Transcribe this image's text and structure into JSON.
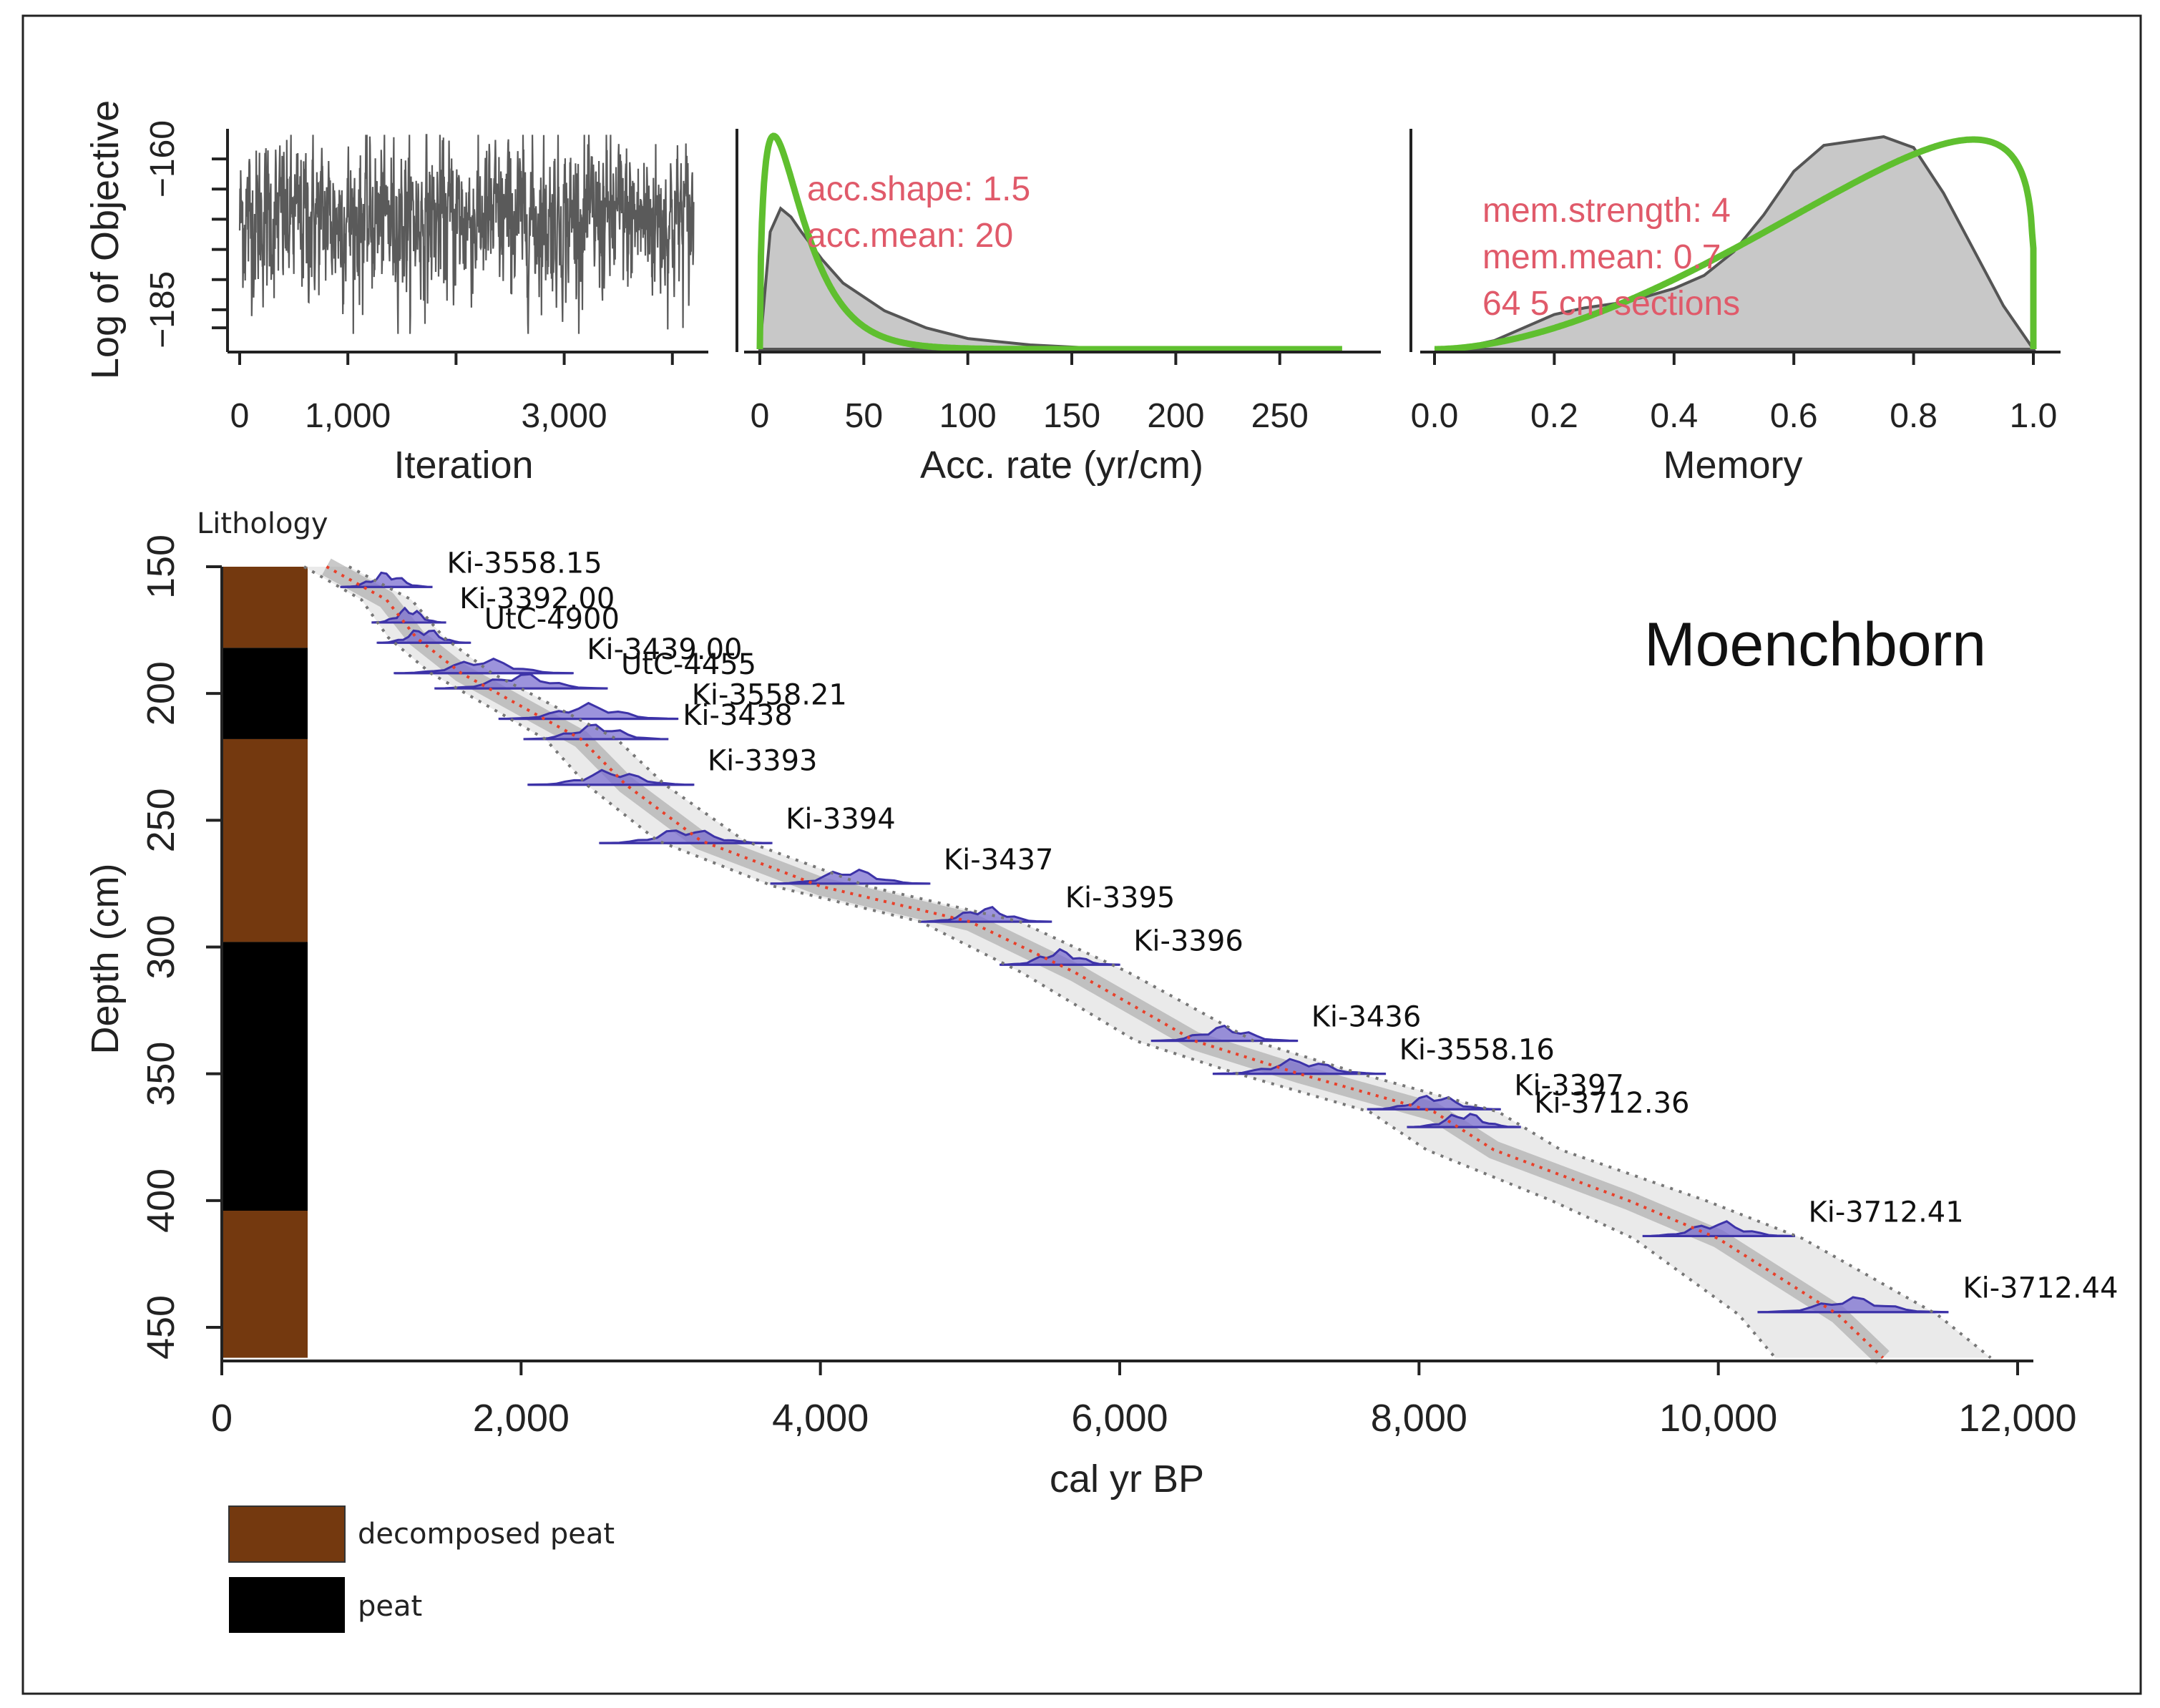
{
  "chart_data": [
    {
      "type": "line",
      "panel": "iterations",
      "ylabel": "Log of Objective",
      "xlabel": "Iteration",
      "xlim": [
        0,
        4200
      ],
      "ylim": [
        -190,
        -155
      ],
      "xticks": [
        0,
        1000,
        2000,
        3000,
        4000
      ],
      "xtick_labels": [
        "0",
        "1,000",
        "",
        "3,000",
        ""
      ],
      "yticks": [
        -160,
        -165,
        -170,
        -175,
        -180,
        -185,
        -188
      ],
      "ytick_labels": [
        "−160",
        "",
        "",
        "",
        "",
        "−185",
        ""
      ],
      "series": [
        {
          "n_points": 4200,
          "mean": -170,
          "spread": 6,
          "color": "#5a5a5a"
        }
      ]
    },
    {
      "type": "area",
      "panel": "accumulation",
      "xlabel": "Acc. rate (yr/cm)",
      "xlim": [
        0,
        290
      ],
      "xticks": [
        0,
        50,
        100,
        150,
        200,
        250
      ],
      "xtick_labels": [
        "0",
        "50",
        "100",
        "150",
        "200",
        "250"
      ],
      "annotations": [
        "acc.shape:  1.5",
        "acc.mean:  20"
      ],
      "prior": {
        "shape": 1.5,
        "mean": 20,
        "color": "#5fbf2f"
      },
      "posterior": {
        "x": [
          0,
          5,
          10,
          15,
          20,
          30,
          40,
          60,
          80,
          100,
          130,
          160,
          200
        ],
        "y": [
          0,
          0.55,
          0.66,
          0.62,
          0.55,
          0.42,
          0.31,
          0.18,
          0.1,
          0.05,
          0.02,
          0.005,
          0
        ]
      }
    },
    {
      "type": "area",
      "panel": "memory",
      "xlabel": "Memory",
      "xlim": [
        0,
        1
      ],
      "xticks": [
        0,
        0.2,
        0.4,
        0.6,
        0.8,
        1.0
      ],
      "xtick_labels": [
        "0.0",
        "0.2",
        "0.4",
        "0.6",
        "0.8",
        "1.0"
      ],
      "annotations": [
        "mem.strength:  4",
        "mem.mean:  0.7",
        "64  5 cm sections"
      ],
      "prior": {
        "strength": 4,
        "mean": 0.7,
        "color": "#5fbf2f"
      },
      "posterior": {
        "x": [
          0,
          0.05,
          0.1,
          0.15,
          0.2,
          0.25,
          0.3,
          0.35,
          0.4,
          0.45,
          0.5,
          0.55,
          0.6,
          0.65,
          0.7,
          0.75,
          0.8,
          0.85,
          0.9,
          0.95,
          1.0
        ],
        "y": [
          0,
          0.01,
          0.04,
          0.1,
          0.16,
          0.19,
          0.21,
          0.24,
          0.28,
          0.34,
          0.45,
          0.62,
          0.82,
          0.94,
          0.96,
          0.98,
          0.93,
          0.72,
          0.46,
          0.2,
          0
        ]
      }
    },
    {
      "type": "scatter",
      "panel": "age-depth",
      "title": "Moenchborn",
      "xlabel": "cal yr BP",
      "ylabel": "Depth (cm)",
      "xlim": [
        0,
        12000
      ],
      "ylim": [
        150,
        462
      ],
      "xticks": [
        0,
        2000,
        4000,
        6000,
        8000,
        10000,
        12000
      ],
      "xtick_labels": [
        "0",
        "2,000",
        "4,000",
        "6,000",
        "8,000",
        "10,000",
        "12,000"
      ],
      "yticks": [
        150,
        200,
        250,
        300,
        350,
        400,
        450
      ],
      "ytick_labels": [
        "150",
        "200",
        "250",
        "300",
        "350",
        "400",
        "450"
      ],
      "lithology_label": "Lithology",
      "lithology": [
        {
          "from": 150,
          "to": 182,
          "type": "decomposed peat"
        },
        {
          "from": 182,
          "to": 218,
          "type": "peat"
        },
        {
          "from": 218,
          "to": 298,
          "type": "decomposed peat"
        },
        {
          "from": 298,
          "to": 404,
          "type": "peat"
        },
        {
          "from": 404,
          "to": 462,
          "type": "decomposed peat"
        }
      ],
      "lithology_colors": {
        "decomposed peat": "#74390f",
        "peat": "#000000"
      },
      "legend": [
        {
          "label": "decomposed peat",
          "color": "#74390f"
        },
        {
          "label": "peat",
          "color": "#000000"
        }
      ],
      "model_median": [
        [
          700,
          150
        ],
        [
          1100,
          163
        ],
        [
          1300,
          178
        ],
        [
          1600,
          192
        ],
        [
          2000,
          205
        ],
        [
          2400,
          218
        ],
        [
          2700,
          236
        ],
        [
          3200,
          258
        ],
        [
          4000,
          276
        ],
        [
          5000,
          290
        ],
        [
          5700,
          310
        ],
        [
          6500,
          337
        ],
        [
          7200,
          350
        ],
        [
          8100,
          365
        ],
        [
          8500,
          380
        ],
        [
          9400,
          400
        ],
        [
          10000,
          415
        ],
        [
          10800,
          445
        ],
        [
          11100,
          462
        ]
      ],
      "dates": [
        {
          "label": "Ki-3558.15",
          "age": 1100,
          "depth": 158,
          "sd": 140
        },
        {
          "label": "Ki-3392.00",
          "age": 1250,
          "depth": 172,
          "sd": 110
        },
        {
          "label": "UtC-4900",
          "age": 1350,
          "depth": 180,
          "sd": 140
        },
        {
          "label": "Ki-3439.00",
          "age": 1750,
          "depth": 192,
          "sd": 270
        },
        {
          "label": "UtC-4455",
          "age": 2000,
          "depth": 198,
          "sd": 260
        },
        {
          "label": "Ki-3558.21",
          "age": 2450,
          "depth": 210,
          "sd": 270
        },
        {
          "label": "Ki-3438",
          "age": 2500,
          "depth": 218,
          "sd": 220
        },
        {
          "label": "Ki-3393",
          "age": 2600,
          "depth": 236,
          "sd": 250
        },
        {
          "label": "Ki-3394",
          "age": 3100,
          "depth": 259,
          "sd": 260
        },
        {
          "label": "Ki-3437",
          "age": 4200,
          "depth": 275,
          "sd": 240
        },
        {
          "label": "Ki-3395",
          "age": 5100,
          "depth": 290,
          "sd": 200
        },
        {
          "label": "Ki-3396",
          "age": 5600,
          "depth": 307,
          "sd": 180
        },
        {
          "label": "Ki-3436",
          "age": 6700,
          "depth": 337,
          "sd": 220
        },
        {
          "label": "Ki-3558.16",
          "age": 7200,
          "depth": 350,
          "sd": 260
        },
        {
          "label": "Ki-3397",
          "age": 8100,
          "depth": 364,
          "sd": 200
        },
        {
          "label": "Ki-3712.36",
          "age": 8300,
          "depth": 371,
          "sd": 170
        },
        {
          "label": "Ki-3712.41",
          "age": 10000,
          "depth": 414,
          "sd": 230
        },
        {
          "label": "Ki-3712.44",
          "age": 10900,
          "depth": 444,
          "sd": 290
        }
      ]
    }
  ]
}
